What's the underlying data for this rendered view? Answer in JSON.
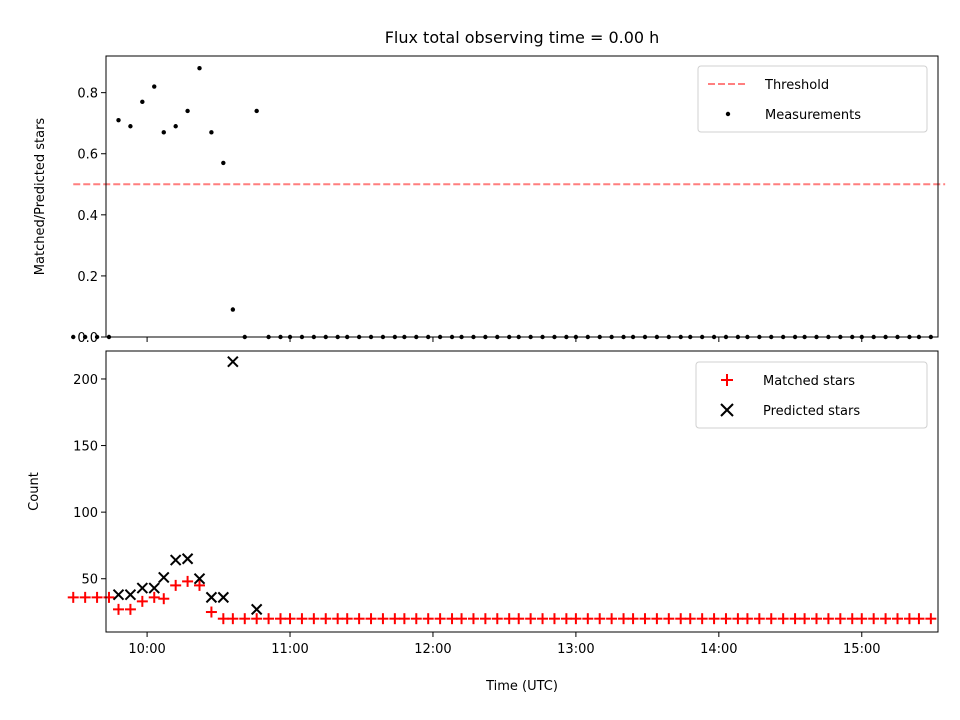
{
  "figure_title": "Flux total observing time = 0.00 h",
  "chart_data": [
    {
      "type": "scatter",
      "title": "Flux total observing time = 0.00 h",
      "xlabel": "",
      "ylabel": "Matched/Predicted stars",
      "xlim": [
        582.75,
        932.0
      ],
      "ylim": [
        0.0,
        0.92
      ],
      "yticks": [
        0.0,
        0.2,
        0.4,
        0.6,
        0.8
      ],
      "ytick_labels": [
        "0.0",
        "0.2",
        "0.4",
        "0.6",
        "0.8"
      ],
      "xticks": [
        600,
        660,
        720,
        780,
        840,
        900
      ],
      "xtick_labels": [
        "",
        "",
        "",
        "",
        "",
        ""
      ],
      "grid": false,
      "legend": {
        "placement": "top-right",
        "entries": [
          "Threshold",
          "Measurements"
        ]
      },
      "threshold": {
        "name": "Threshold",
        "x": [
          569.0,
          935.0
        ],
        "y": [
          0.5,
          0.5
        ],
        "color": "#ff7f7f",
        "style": "dashed"
      },
      "measurements": {
        "name": "Measurements",
        "color": "#000000",
        "x": [
          569,
          574,
          579,
          584,
          588,
          593,
          598,
          603,
          607,
          612,
          617,
          622,
          627,
          632,
          636,
          641,
          646,
          651,
          656,
          660,
          665,
          670,
          675,
          680,
          684,
          689,
          694,
          699,
          704,
          708,
          713,
          718,
          723,
          728,
          732,
          737,
          742,
          747,
          752,
          756,
          761,
          766,
          771,
          776,
          780,
          785,
          790,
          795,
          800,
          804,
          809,
          814,
          819,
          824,
          828,
          833,
          838,
          843,
          848,
          852,
          857,
          862,
          867,
          872,
          876,
          881,
          886,
          891,
          896,
          900,
          905,
          910,
          915,
          920,
          924,
          929
        ],
        "y": [
          0,
          0,
          0,
          0,
          0.71,
          0.69,
          0.77,
          0.82,
          0.67,
          0.69,
          0.74,
          0.88,
          0.67,
          0.57,
          0.09,
          0,
          0.74,
          0,
          0,
          0,
          0,
          0,
          0,
          0,
          0,
          0,
          0,
          0,
          0,
          0,
          0,
          0,
          0,
          0,
          0,
          0,
          0,
          0,
          0,
          0,
          0,
          0,
          0,
          0,
          0,
          0,
          0,
          0,
          0,
          0,
          0,
          0,
          0,
          0,
          0,
          0,
          0,
          0,
          0,
          0,
          0,
          0,
          0,
          0,
          0,
          0,
          0,
          0,
          0,
          0,
          0,
          0,
          0,
          0,
          0,
          0
        ]
      }
    },
    {
      "type": "scatter",
      "title": "",
      "xlabel": "Time (UTC)",
      "ylabel": "Count",
      "xlim": [
        582.75,
        932.0
      ],
      "ylim": [
        10.0,
        221.0
      ],
      "yticks": [
        50,
        100,
        150,
        200
      ],
      "ytick_labels": [
        "50",
        "100",
        "150",
        "200"
      ],
      "xticks": [
        600,
        660,
        720,
        780,
        840,
        900
      ],
      "xtick_labels": [
        "10:00",
        "11:00",
        "12:00",
        "13:00",
        "14:00",
        "15:00"
      ],
      "grid": false,
      "legend": {
        "placement": "top-right",
        "entries": [
          "Matched stars",
          "Predicted stars"
        ]
      },
      "matched": {
        "name": "Matched stars",
        "color": "#ff0000",
        "marker": "+",
        "x": [
          569,
          574,
          579,
          584,
          588,
          593,
          598,
          603,
          607,
          612,
          617,
          622,
          627,
          632,
          636,
          641,
          646,
          651,
          656,
          660,
          665,
          670,
          675,
          680,
          684,
          689,
          694,
          699,
          704,
          708,
          713,
          718,
          723,
          728,
          732,
          737,
          742,
          747,
          752,
          756,
          761,
          766,
          771,
          776,
          780,
          785,
          790,
          795,
          800,
          804,
          809,
          814,
          819,
          824,
          828,
          833,
          838,
          843,
          848,
          852,
          857,
          862,
          867,
          872,
          876,
          881,
          886,
          891,
          896,
          900,
          905,
          910,
          915,
          920,
          924,
          929
        ],
        "y": [
          36,
          36,
          36,
          36,
          27,
          27,
          33,
          36,
          35,
          45,
          48,
          45,
          25,
          20,
          20,
          20,
          20,
          20,
          20,
          20,
          20,
          20,
          20,
          20,
          20,
          20,
          20,
          20,
          20,
          20,
          20,
          20,
          20,
          20,
          20,
          20,
          20,
          20,
          20,
          20,
          20,
          20,
          20,
          20,
          20,
          20,
          20,
          20,
          20,
          20,
          20,
          20,
          20,
          20,
          20,
          20,
          20,
          20,
          20,
          20,
          20,
          20,
          20,
          20,
          20,
          20,
          20,
          20,
          20,
          20,
          20,
          20,
          20,
          20,
          20,
          20
        ]
      },
      "predicted": {
        "name": "Predicted stars",
        "color": "#000000",
        "marker": "x",
        "x": [
          588,
          593,
          598,
          603,
          607,
          612,
          617,
          622,
          627,
          632,
          636,
          646
        ],
        "y": [
          38,
          38,
          43,
          43,
          51,
          64,
          65,
          50,
          36,
          36,
          213,
          27
        ]
      }
    }
  ]
}
